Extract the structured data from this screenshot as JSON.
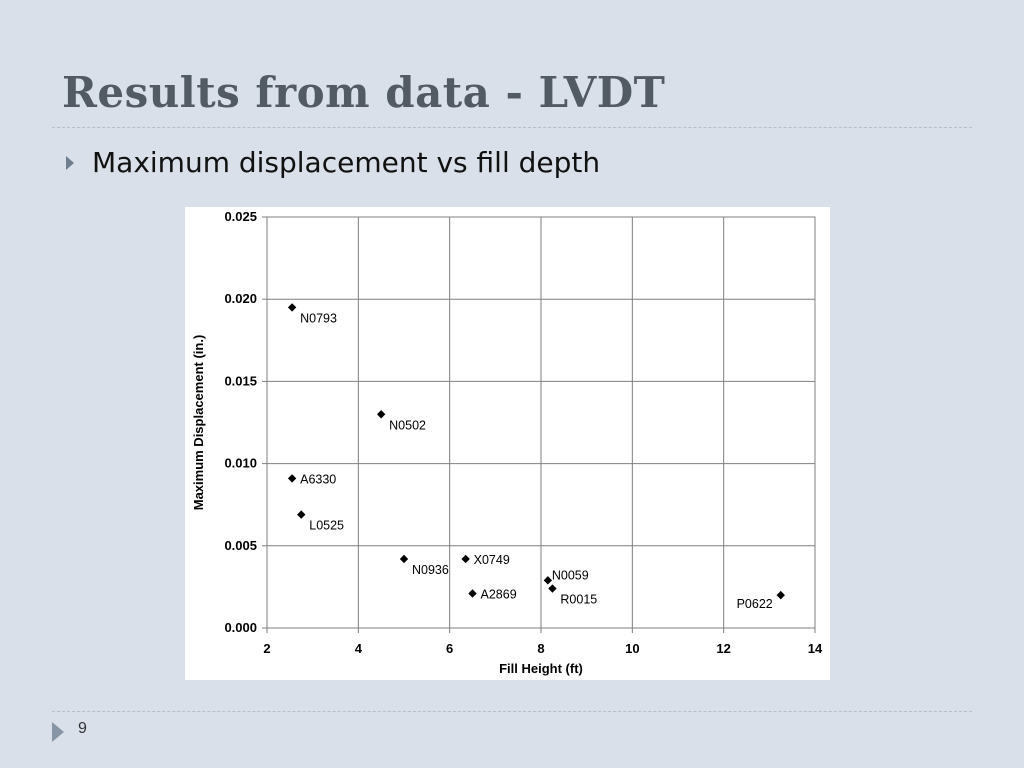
{
  "slide": {
    "title": "Results from data - LVDT",
    "bullet": "Maximum displacement vs fill depth",
    "page_number": "9"
  },
  "colors": {
    "background": "#d9e0e9",
    "title": "#525a63",
    "grid": "#7f7f7f",
    "marker": "#000000"
  },
  "chart_data": {
    "type": "scatter",
    "title": "",
    "xlabel": "Fill Height (ft)",
    "ylabel": "Maximum Displacement (in.)",
    "xlim": [
      2,
      14
    ],
    "ylim": [
      0,
      0.025
    ],
    "xticks": [
      2,
      4,
      6,
      8,
      10,
      12,
      14
    ],
    "yticks": [
      0,
      0.005,
      0.01,
      0.015,
      0.02,
      0.025
    ],
    "xtick_labels": [
      "2",
      "4",
      "6",
      "8",
      "10",
      "12",
      "14"
    ],
    "ytick_labels": [
      "0.000",
      "0.005",
      "0.010",
      "0.015",
      "0.020",
      "0.025"
    ],
    "grid": true,
    "marker": "diamond",
    "points": [
      {
        "label": "N0793",
        "x": 2.55,
        "y": 0.0195,
        "label_pos": "below-right"
      },
      {
        "label": "N0502",
        "x": 4.5,
        "y": 0.013,
        "label_pos": "below-right"
      },
      {
        "label": "A6330",
        "x": 2.55,
        "y": 0.0091,
        "label_pos": "right"
      },
      {
        "label": "L0525",
        "x": 2.75,
        "y": 0.0069,
        "label_pos": "below-right"
      },
      {
        "label": "N0936",
        "x": 5.0,
        "y": 0.0042,
        "label_pos": "below-right"
      },
      {
        "label": "X0749",
        "x": 6.35,
        "y": 0.0042,
        "label_pos": "right"
      },
      {
        "label": "A2869",
        "x": 6.5,
        "y": 0.0021,
        "label_pos": "right"
      },
      {
        "label": "N0059",
        "x": 8.15,
        "y": 0.0029,
        "label_pos": "upper-right"
      },
      {
        "label": "R0015",
        "x": 8.25,
        "y": 0.0024,
        "label_pos": "below-right"
      },
      {
        "label": "P0622",
        "x": 13.25,
        "y": 0.002,
        "label_pos": "below-left"
      }
    ]
  }
}
